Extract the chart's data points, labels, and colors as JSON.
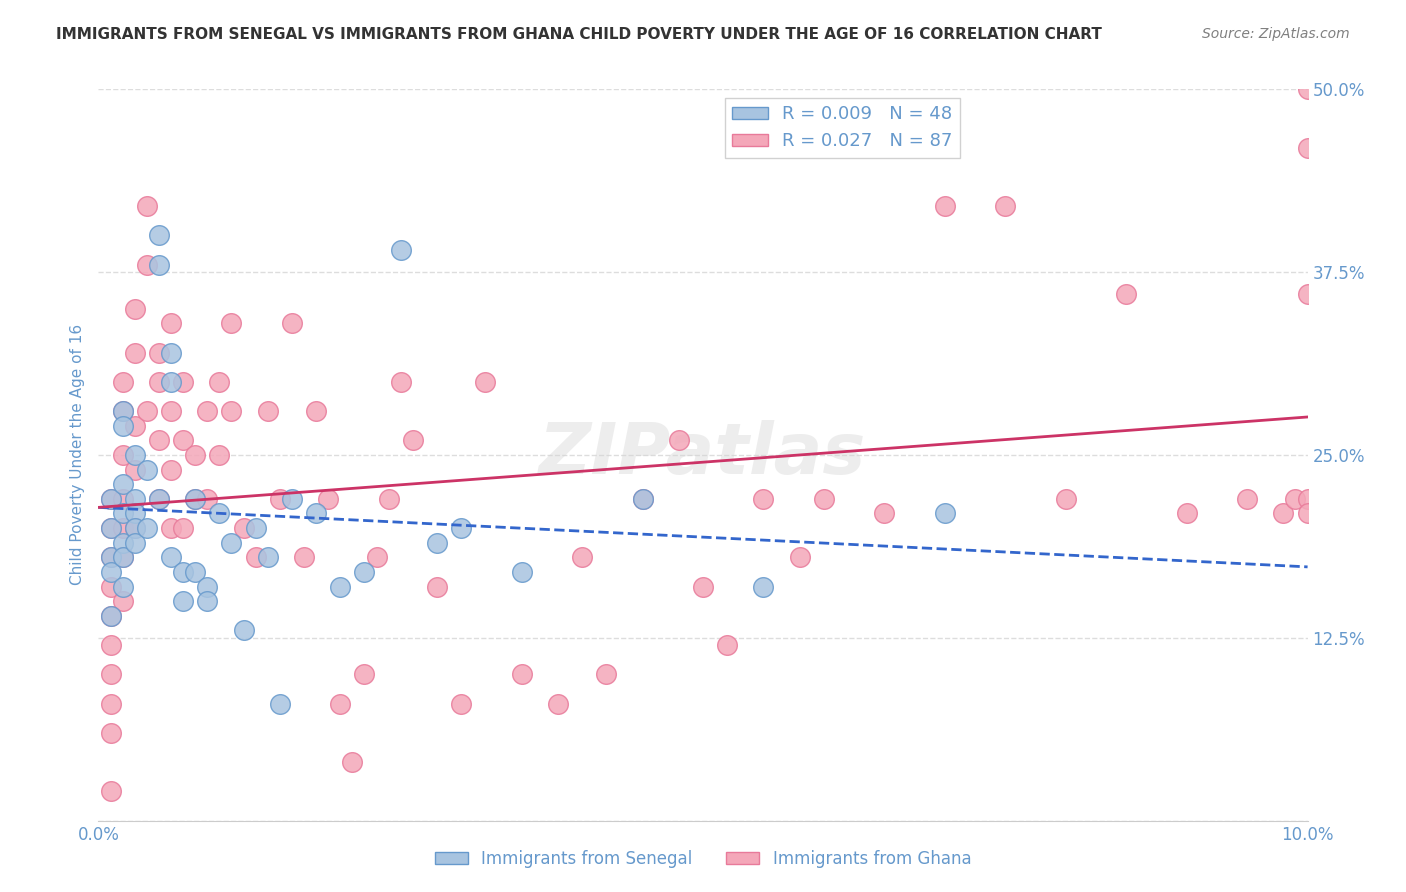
{
  "title": "IMMIGRANTS FROM SENEGAL VS IMMIGRANTS FROM GHANA CHILD POVERTY UNDER THE AGE OF 16 CORRELATION CHART",
  "source": "Source: ZipAtlas.com",
  "xlabel": "",
  "ylabel": "Child Poverty Under the Age of 16",
  "xlim": [
    0,
    0.1
  ],
  "ylim": [
    0,
    0.5
  ],
  "xticks": [
    0.0,
    0.02,
    0.04,
    0.06,
    0.08,
    0.1
  ],
  "xticklabels": [
    "0.0%",
    "",
    "",
    "",
    "",
    "10.0%"
  ],
  "yticks": [
    0.0,
    0.125,
    0.25,
    0.375,
    0.5
  ],
  "yticklabels": [
    "",
    "12.5%",
    "25.0%",
    "37.5%",
    "50.0%"
  ],
  "legend_labels": [
    "Immigrants from Senegal",
    "Immigrants from Ghana"
  ],
  "legend_R": [
    "R = 0.009",
    "R = 0.027"
  ],
  "legend_N": [
    "N = 48",
    "N = 87"
  ],
  "senegal_color": "#a8c4e0",
  "ghana_color": "#f4a7b9",
  "senegal_edge": "#6699cc",
  "ghana_edge": "#e87a9a",
  "trend_senegal_color": "#3366cc",
  "trend_ghana_color": "#cc3366",
  "watermark": "ZIPatlas",
  "background_color": "#ffffff",
  "grid_color": "#dddddd",
  "title_color": "#333333",
  "axis_label_color": "#6699cc",
  "tick_color": "#6699cc",
  "senegal_x": [
    0.001,
    0.001,
    0.001,
    0.001,
    0.001,
    0.002,
    0.002,
    0.002,
    0.002,
    0.002,
    0.002,
    0.002,
    0.003,
    0.003,
    0.003,
    0.003,
    0.003,
    0.004,
    0.004,
    0.005,
    0.005,
    0.005,
    0.006,
    0.006,
    0.006,
    0.007,
    0.007,
    0.008,
    0.008,
    0.009,
    0.009,
    0.01,
    0.011,
    0.012,
    0.013,
    0.014,
    0.015,
    0.016,
    0.018,
    0.02,
    0.022,
    0.025,
    0.028,
    0.03,
    0.035,
    0.045,
    0.055,
    0.07
  ],
  "senegal_y": [
    0.22,
    0.2,
    0.18,
    0.17,
    0.14,
    0.28,
    0.27,
    0.23,
    0.21,
    0.19,
    0.18,
    0.16,
    0.25,
    0.22,
    0.21,
    0.2,
    0.19,
    0.24,
    0.2,
    0.4,
    0.38,
    0.22,
    0.32,
    0.3,
    0.18,
    0.17,
    0.15,
    0.22,
    0.17,
    0.16,
    0.15,
    0.21,
    0.19,
    0.13,
    0.2,
    0.18,
    0.08,
    0.22,
    0.21,
    0.16,
    0.17,
    0.39,
    0.19,
    0.2,
    0.17,
    0.22,
    0.16,
    0.21
  ],
  "ghana_x": [
    0.001,
    0.001,
    0.001,
    0.001,
    0.001,
    0.001,
    0.001,
    0.001,
    0.001,
    0.001,
    0.002,
    0.002,
    0.002,
    0.002,
    0.002,
    0.002,
    0.002,
    0.003,
    0.003,
    0.003,
    0.003,
    0.003,
    0.004,
    0.004,
    0.004,
    0.005,
    0.005,
    0.005,
    0.005,
    0.006,
    0.006,
    0.006,
    0.006,
    0.007,
    0.007,
    0.007,
    0.008,
    0.008,
    0.009,
    0.009,
    0.01,
    0.01,
    0.011,
    0.011,
    0.012,
    0.013,
    0.014,
    0.015,
    0.016,
    0.017,
    0.018,
    0.019,
    0.02,
    0.021,
    0.022,
    0.023,
    0.024,
    0.025,
    0.026,
    0.028,
    0.03,
    0.032,
    0.035,
    0.038,
    0.04,
    0.042,
    0.045,
    0.048,
    0.05,
    0.052,
    0.055,
    0.058,
    0.06,
    0.065,
    0.07,
    0.075,
    0.08,
    0.085,
    0.09,
    0.095,
    0.098,
    0.099,
    0.1,
    0.1,
    0.1,
    0.1,
    0.1
  ],
  "ghana_y": [
    0.22,
    0.2,
    0.18,
    0.16,
    0.14,
    0.12,
    0.1,
    0.08,
    0.06,
    0.02,
    0.3,
    0.28,
    0.25,
    0.22,
    0.2,
    0.18,
    0.15,
    0.35,
    0.32,
    0.27,
    0.24,
    0.2,
    0.42,
    0.38,
    0.28,
    0.32,
    0.3,
    0.26,
    0.22,
    0.34,
    0.28,
    0.24,
    0.2,
    0.3,
    0.26,
    0.2,
    0.25,
    0.22,
    0.28,
    0.22,
    0.3,
    0.25,
    0.34,
    0.28,
    0.2,
    0.18,
    0.28,
    0.22,
    0.34,
    0.18,
    0.28,
    0.22,
    0.08,
    0.04,
    0.1,
    0.18,
    0.22,
    0.3,
    0.26,
    0.16,
    0.08,
    0.3,
    0.1,
    0.08,
    0.18,
    0.1,
    0.22,
    0.26,
    0.16,
    0.12,
    0.22,
    0.18,
    0.22,
    0.21,
    0.42,
    0.42,
    0.22,
    0.36,
    0.21,
    0.22,
    0.21,
    0.22,
    0.5,
    0.46,
    0.36,
    0.22,
    0.21
  ]
}
